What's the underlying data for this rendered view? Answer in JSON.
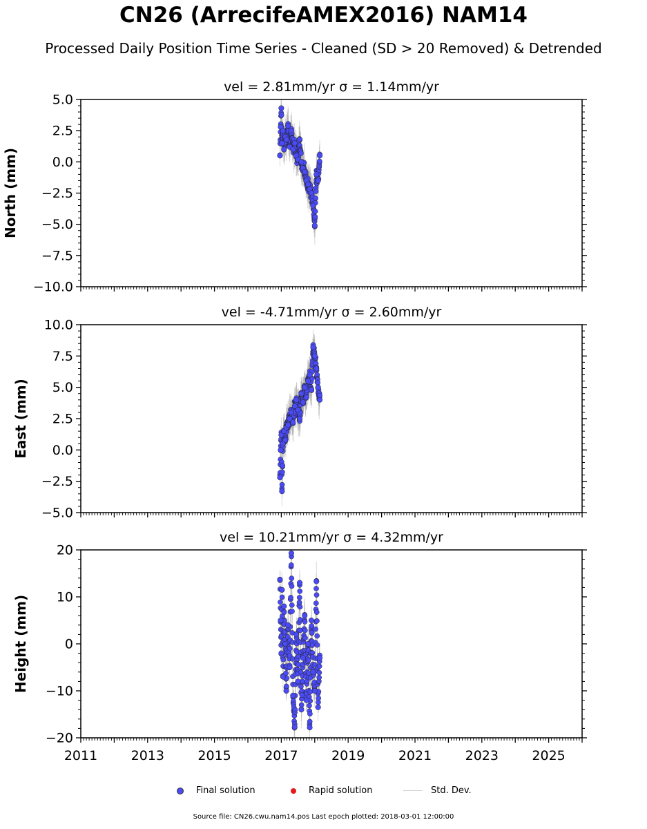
{
  "header": {
    "title": "CN26 (ArrecifeAMEX2016) NAM14",
    "subtitle": "Processed Daily Position Time Series - Cleaned (SD > 20 Removed) & Detrended"
  },
  "legend": {
    "final_label": "Final solution",
    "rapid_label": "Rapid solution",
    "std_label": "Std. Dev."
  },
  "footer": {
    "source": "Source file: CN26.cwu.nam14.pos  Last epoch plotted: 2018-03-01 12:00:00"
  },
  "colors": {
    "final": "#4b4bf5",
    "rapid": "#e41a1c",
    "std": "#aaaaaa"
  },
  "chart_data": [
    {
      "type": "scatter",
      "title": "vel = 2.81mm/yr   σ = 1.14mm/yr",
      "ylabel": "North (mm)",
      "xlim": [
        2011,
        2026
      ],
      "ylim": [
        -10,
        5
      ],
      "yticks": [
        5.0,
        2.5,
        0.0,
        -2.5,
        -5.0,
        -7.5,
        -10.0
      ],
      "ytick_labels": [
        "5.0",
        "2.5",
        "0.0",
        "−2.5",
        "−5.0",
        "−7.5",
        "−10.0"
      ],
      "series": [
        {
          "name": "Final solution",
          "x": [
            2016.96,
            2016.98,
            2017.0,
            2017.02,
            2017.05,
            2017.08,
            2017.12,
            2017.15,
            2017.2,
            2017.25,
            2017.3,
            2017.35,
            2017.4,
            2017.45,
            2017.5,
            2017.55,
            2017.6,
            2017.65,
            2017.7,
            2017.75,
            2017.8,
            2017.85,
            2017.9,
            2017.95,
            2018.0,
            2018.05,
            2018.1,
            2018.15
          ],
          "y": [
            0.5,
            2.8,
            4.3,
            1.5,
            2.5,
            1.0,
            2.0,
            1.8,
            2.9,
            1.2,
            2.5,
            1.0,
            1.5,
            0.5,
            0.2,
            1.8,
            0.0,
            -0.5,
            -0.8,
            -1.5,
            -1.8,
            -2.2,
            -2.5,
            -3.5,
            -5.1,
            -1.0,
            -1.5,
            0.5
          ]
        }
      ]
    },
    {
      "type": "scatter",
      "title": "vel = -4.71mm/yr   σ = 2.60mm/yr",
      "ylabel": "East (mm)",
      "xlim": [
        2011,
        2026
      ],
      "ylim": [
        -5,
        10
      ],
      "yticks": [
        10.0,
        7.5,
        5.0,
        2.5,
        0.0,
        -2.5,
        -5.0
      ],
      "ytick_labels": [
        "10.0",
        "7.5",
        "5.0",
        "2.5",
        "0.0",
        "−2.5",
        "−5.0"
      ],
      "series": [
        {
          "name": "Final solution",
          "x": [
            2016.96,
            2016.98,
            2017.0,
            2017.02,
            2017.05,
            2017.08,
            2017.12,
            2017.15,
            2017.2,
            2017.25,
            2017.3,
            2017.35,
            2017.4,
            2017.45,
            2017.5,
            2017.55,
            2017.6,
            2017.65,
            2017.7,
            2017.75,
            2017.8,
            2017.85,
            2017.9,
            2017.95,
            2018.0,
            2018.05,
            2018.1,
            2018.15
          ],
          "y": [
            -2.2,
            0.0,
            1.2,
            -3.3,
            0.5,
            1.5,
            0.8,
            1.8,
            2.0,
            2.5,
            3.0,
            2.2,
            3.5,
            4.0,
            3.2,
            2.5,
            4.5,
            3.8,
            5.0,
            4.2,
            5.5,
            6.0,
            4.8,
            8.2,
            7.5,
            6.5,
            5.0,
            4.0
          ]
        }
      ]
    },
    {
      "type": "scatter",
      "title": "vel = 10.21mm/yr   σ = 4.32mm/yr",
      "ylabel": "Height (mm)",
      "xlim": [
        2011,
        2026
      ],
      "ylim": [
        -20,
        20
      ],
      "yticks": [
        20,
        10,
        0,
        -10,
        -20
      ],
      "ytick_labels": [
        "20",
        "10",
        "0",
        "−10",
        "−20"
      ],
      "xticks": [
        2011,
        2013,
        2015,
        2017,
        2019,
        2021,
        2023,
        2025
      ],
      "xtick_labels": [
        "2011",
        "2013",
        "2015",
        "2017",
        "2019",
        "2021",
        "2023",
        "2025"
      ],
      "series": [
        {
          "name": "Final solution",
          "x": [
            2016.96,
            2016.98,
            2017.0,
            2017.02,
            2017.05,
            2017.08,
            2017.12,
            2017.15,
            2017.2,
            2017.25,
            2017.3,
            2017.35,
            2017.4,
            2017.45,
            2017.5,
            2017.55,
            2017.6,
            2017.65,
            2017.7,
            2017.75,
            2017.8,
            2017.85,
            2017.9,
            2017.95,
            2018.0,
            2018.05,
            2018.1,
            2018.15
          ],
          "y": [
            13.7,
            5.0,
            -2.0,
            11.5,
            -7.0,
            8.0,
            0.0,
            -10.0,
            4.0,
            -5.0,
            19.3,
            -11.0,
            -17.7,
            2.0,
            -8.0,
            13.0,
            -14.0,
            -3.0,
            6.0,
            -12.0,
            0.0,
            -17.8,
            5.0,
            -6.0,
            -10.0,
            13.3,
            -13.5,
            -3.0
          ]
        }
      ]
    }
  ]
}
